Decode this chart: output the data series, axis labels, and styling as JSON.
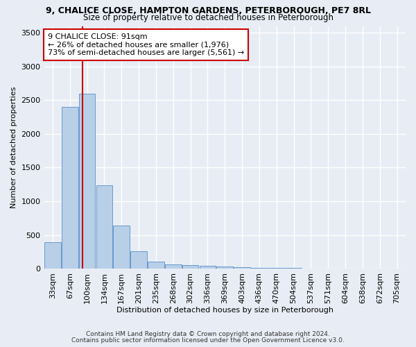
{
  "title_line1": "9, CHALICE CLOSE, HAMPTON GARDENS, PETERBOROUGH, PE7 8RL",
  "title_line2": "Size of property relative to detached houses in Peterborough",
  "xlabel": "Distribution of detached houses by size in Peterborough",
  "ylabel": "Number of detached properties",
  "footnote1": "Contains HM Land Registry data © Crown copyright and database right 2024.",
  "footnote2": "Contains public sector information licensed under the Open Government Licence v3.0.",
  "categories": [
    "33sqm",
    "67sqm",
    "100sqm",
    "134sqm",
    "167sqm",
    "201sqm",
    "235sqm",
    "268sqm",
    "302sqm",
    "336sqm",
    "369sqm",
    "403sqm",
    "436sqm",
    "470sqm",
    "504sqm",
    "537sqm",
    "571sqm",
    "604sqm",
    "638sqm",
    "672sqm",
    "705sqm"
  ],
  "values": [
    390,
    2400,
    2600,
    1240,
    640,
    260,
    100,
    60,
    55,
    45,
    30,
    20,
    15,
    10,
    8,
    6,
    5,
    4,
    3,
    2,
    2
  ],
  "bar_color": "#b8cfe8",
  "bar_edge_color": "#6699cc",
  "background_color": "#e8edf5",
  "grid_color": "#ffffff",
  "vline_x": 1.73,
  "vline_color": "#cc0000",
  "annotation_text": "9 CHALICE CLOSE: 91sqm\n← 26% of detached houses are smaller (1,976)\n73% of semi-detached houses are larger (5,561) →",
  "annotation_box_color": "#ffffff",
  "annotation_box_edge": "#cc0000",
  "ylim": [
    0,
    3600
  ],
  "yticks": [
    0,
    500,
    1000,
    1500,
    2000,
    2500,
    3000,
    3500
  ],
  "title1_fontsize": 9,
  "title2_fontsize": 8.5,
  "ylabel_fontsize": 8,
  "xlabel_fontsize": 8,
  "tick_fontsize": 8,
  "annot_fontsize": 8
}
